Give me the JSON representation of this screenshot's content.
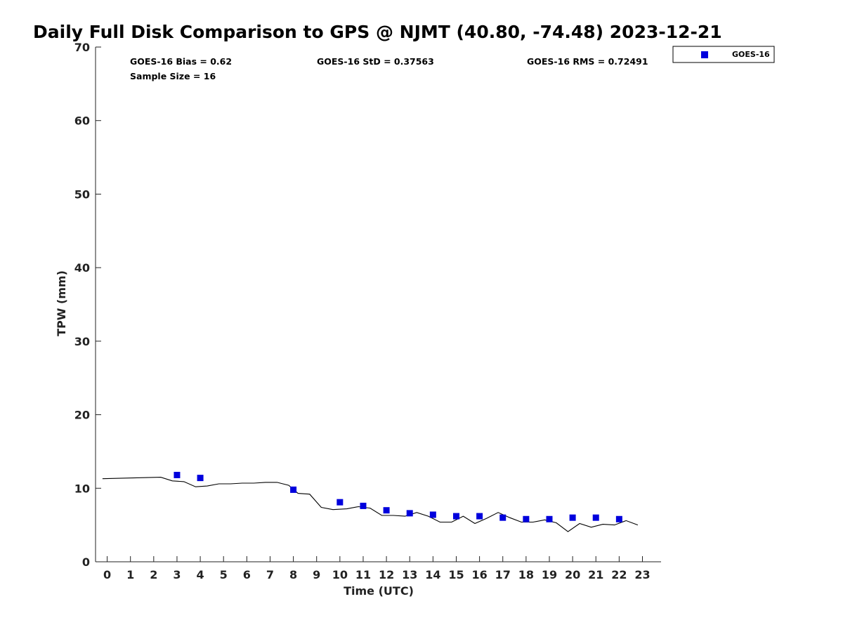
{
  "chart_data": {
    "type": "scatter",
    "title": "Daily Full Disk Comparison to GPS @ NJMT (40.80, -74.48) 2023-12-21",
    "xlabel": "Time (UTC)",
    "ylabel": "TPW (mm)",
    "xlim": [
      -0.5,
      23.8
    ],
    "ylim": [
      0,
      70
    ],
    "x_ticks": [
      0,
      1,
      2,
      3,
      4,
      5,
      6,
      7,
      8,
      9,
      10,
      11,
      12,
      13,
      14,
      15,
      16,
      17,
      18,
      19,
      20,
      21,
      22,
      23
    ],
    "y_ticks": [
      0,
      10,
      20,
      30,
      40,
      50,
      60,
      70
    ],
    "grid": false,
    "legend_position": "top-right, outside plot",
    "stats": {
      "bias": "GOES-16 Bias = 0.62",
      "std": "GOES-16 StD = 0.37563",
      "rms": "GOES-16 RMS = 0.72491",
      "sample_size": "Sample Size = 16"
    },
    "series": [
      {
        "name": "GOES-16",
        "marker": "square",
        "color": "#0000dd",
        "x": [
          3,
          4,
          8,
          10,
          11,
          12,
          13,
          14,
          15,
          16,
          17,
          18,
          19,
          20,
          21,
          22
        ],
        "y": [
          11.8,
          11.4,
          9.8,
          8.1,
          7.6,
          7.0,
          6.6,
          6.4,
          6.2,
          6.2,
          6.0,
          5.8,
          5.8,
          6.0,
          6.0,
          5.8
        ]
      },
      {
        "marker": "line",
        "color": "#000000",
        "x": [
          -0.2,
          2.3,
          2.8,
          3.3,
          3.8,
          4.3,
          4.8,
          5.3,
          5.8,
          6.3,
          6.8,
          7.3,
          7.8,
          8.2,
          8.7,
          9.2,
          9.7,
          10.3,
          10.8,
          11.3,
          11.8,
          12.3,
          12.8,
          13.3,
          13.8,
          14.3,
          14.8,
          15.3,
          15.8,
          16.3,
          16.8,
          17.3,
          17.8,
          18.3,
          18.8,
          19.3,
          19.8,
          20.3,
          20.8,
          21.3,
          21.8,
          22.3,
          22.8
        ],
        "y": [
          11.3,
          11.5,
          11.0,
          10.9,
          10.2,
          10.3,
          10.6,
          10.6,
          10.7,
          10.7,
          10.8,
          10.8,
          10.4,
          9.3,
          9.2,
          7.4,
          7.1,
          7.2,
          7.5,
          7.3,
          6.3,
          6.3,
          6.2,
          6.7,
          6.2,
          5.4,
          5.4,
          6.2,
          5.2,
          5.9,
          6.7,
          6.0,
          5.4,
          5.4,
          5.7,
          5.3,
          4.1,
          5.2,
          4.7,
          5.1,
          5.0,
          5.6,
          5.0
        ]
      }
    ]
  }
}
